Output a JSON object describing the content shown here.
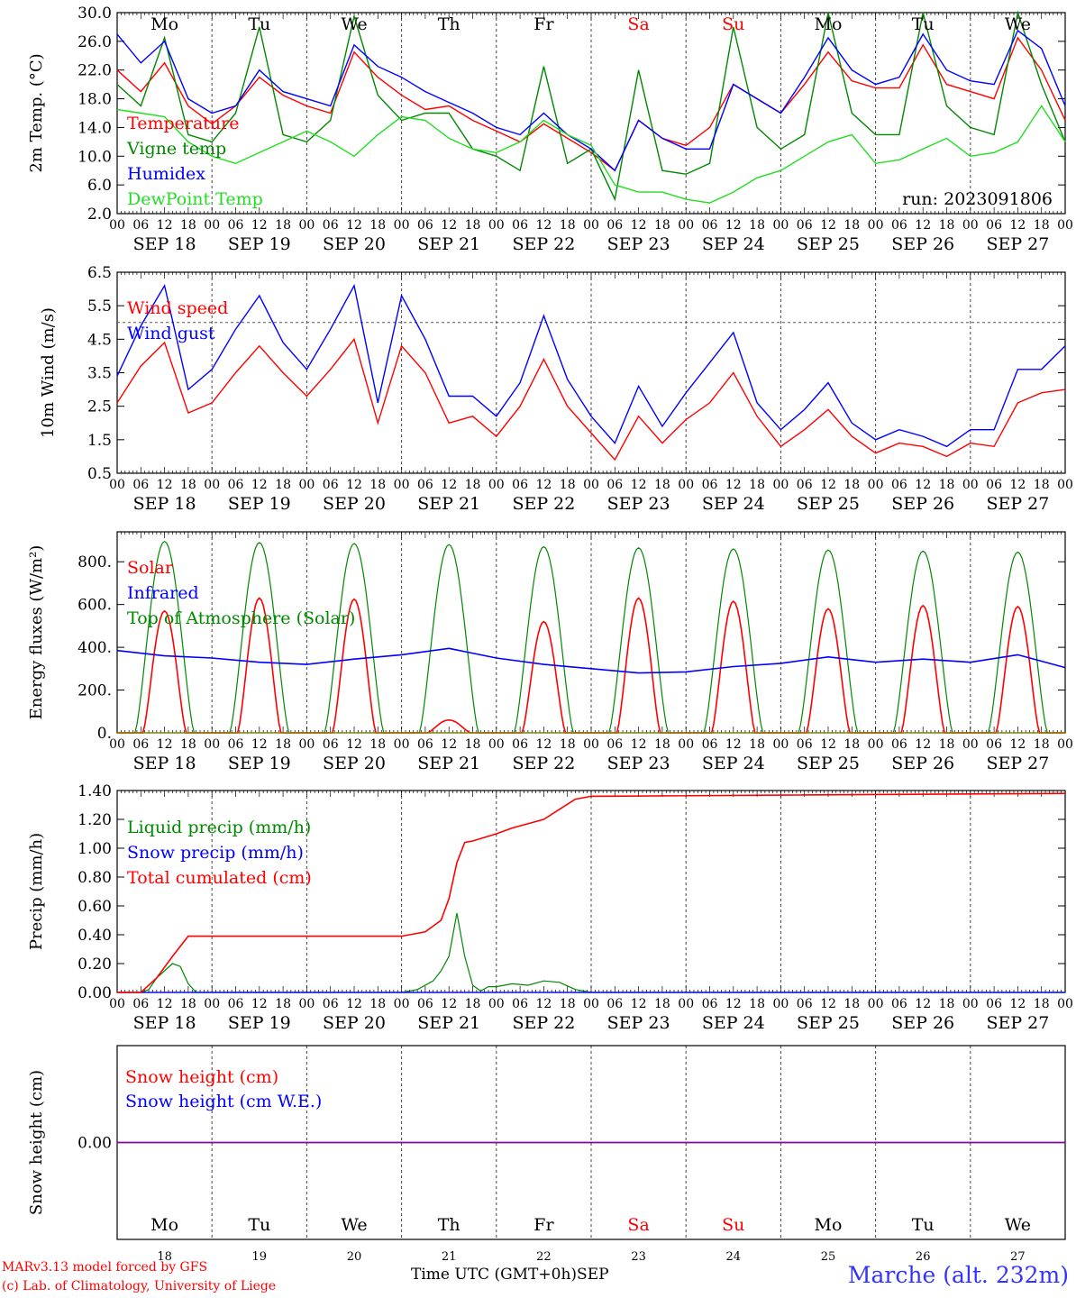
{
  "footer": {
    "model": "MARv3.13 model forced by GFS",
    "credit": "(c) Lab. of Climatology, University of Liege",
    "time_label": "Time UTC (GMT+0h)",
    "month": "SEP",
    "station": "Marche (alt. 232m)"
  },
  "days": {
    "weekdays": [
      "Mo",
      "Tu",
      "We",
      "Th",
      "Fr",
      "Sa",
      "Su",
      "Mo",
      "Tu",
      "We"
    ],
    "dates": [
      "SEP 18",
      "SEP 19",
      "SEP 20",
      "SEP 21",
      "SEP 22",
      "SEP 23",
      "SEP 24",
      "SEP 25",
      "SEP 26",
      "SEP 27"
    ],
    "day_numbers": [
      "18",
      "19",
      "20",
      "21",
      "22",
      "23",
      "24",
      "25",
      "26",
      "27"
    ],
    "hours": [
      "00",
      "06",
      "12",
      "18"
    ],
    "weekend_indices": [
      5,
      6
    ]
  },
  "colors": {
    "red": "#ff0000",
    "green": "#008800",
    "blue": "#0000ff",
    "lightgreen": "#22dd22",
    "purple": "#8800aa"
  },
  "chart_data": [
    {
      "type": "line",
      "ylabel": "2m Temp. (°C)",
      "ylim": [
        2,
        30
      ],
      "yticks": [
        "2.0",
        "6.0",
        "10.0",
        "14.0",
        "18.0",
        "22.0",
        "26.0",
        "30.0"
      ],
      "annotation": "run: 2023091806",
      "series": [
        {
          "name": "Temperature",
          "color": "#ff0000",
          "x": [
            0,
            6,
            12,
            18,
            24,
            30,
            36,
            42,
            48,
            54,
            60,
            66,
            72,
            78,
            84,
            90,
            96,
            102,
            108,
            114,
            120,
            126,
            132,
            138,
            144,
            150,
            156,
            162,
            168,
            174,
            180,
            186,
            192,
            198,
            204,
            210,
            216,
            222,
            228,
            234,
            240
          ],
          "y": [
            22,
            19,
            23,
            17,
            14.5,
            17,
            21,
            18.5,
            17,
            16,
            24.5,
            21,
            18.5,
            16.5,
            17,
            15,
            13.5,
            12,
            14.5,
            12.5,
            10.5,
            8,
            15,
            12.5,
            11.5,
            14,
            20,
            18,
            16,
            20,
            24.5,
            20.5,
            19.5,
            19.5,
            25.5,
            20,
            19,
            18,
            26.5,
            22,
            15
          ]
        },
        {
          "name": "Vigne temp",
          "color": "#008800",
          "x": [
            0,
            6,
            12,
            18,
            24,
            30,
            36,
            42,
            48,
            54,
            60,
            66,
            72,
            78,
            84,
            90,
            96,
            102,
            108,
            114,
            120,
            126,
            132,
            138,
            144,
            150,
            156,
            162,
            168,
            174,
            180,
            186,
            192,
            198,
            204,
            210,
            216,
            222,
            228,
            234,
            240
          ],
          "y": [
            20,
            17,
            26.5,
            13,
            12,
            16,
            28,
            13,
            12,
            15,
            29.5,
            18.5,
            15,
            16,
            16,
            11,
            10,
            8,
            22.5,
            9,
            11,
            4,
            22,
            8,
            7.5,
            9,
            28,
            14,
            11,
            13,
            30,
            16,
            13,
            13,
            30,
            17,
            14,
            13,
            30,
            20,
            12
          ]
        },
        {
          "name": "Humidex",
          "color": "#0000ff",
          "x": [
            0,
            6,
            12,
            18,
            24,
            30,
            36,
            42,
            48,
            54,
            60,
            66,
            72,
            78,
            84,
            90,
            96,
            102,
            108,
            114,
            120,
            126,
            132,
            138,
            144,
            150,
            156,
            162,
            168,
            174,
            180,
            186,
            192,
            198,
            204,
            210,
            216,
            222,
            228,
            234,
            240
          ],
          "y": [
            27,
            23,
            26,
            18,
            16,
            17,
            22,
            19,
            18,
            17,
            25.5,
            22.5,
            21,
            19,
            17.5,
            16,
            14,
            13,
            16,
            13,
            11,
            8,
            15,
            12.5,
            11,
            11,
            20,
            18,
            16,
            21,
            26.5,
            22,
            20,
            21,
            27,
            22,
            20.5,
            20,
            27.5,
            25,
            17
          ]
        },
        {
          "name": "DewPoint Temp",
          "color": "#22dd22",
          "x": [
            0,
            6,
            12,
            18,
            24,
            30,
            36,
            42,
            48,
            54,
            60,
            66,
            72,
            78,
            84,
            90,
            96,
            102,
            108,
            114,
            120,
            126,
            132,
            138,
            144,
            150,
            156,
            162,
            168,
            174,
            180,
            186,
            192,
            198,
            204,
            210,
            216,
            222,
            228,
            234,
            240
          ],
          "y": [
            16.5,
            16,
            15.5,
            12,
            10,
            9,
            10.5,
            12,
            13.5,
            12,
            10,
            13,
            15.5,
            15,
            12.5,
            11,
            10.5,
            12,
            15,
            13,
            11.5,
            6,
            5,
            5,
            4,
            3.5,
            5,
            7,
            8,
            10,
            12,
            13,
            9,
            9.5,
            11,
            12.5,
            10,
            10.5,
            12,
            17,
            12
          ]
        }
      ]
    },
    {
      "type": "line",
      "ylabel": "10m Wind (m/s)",
      "ylim": [
        0.5,
        6.5
      ],
      "yticks": [
        "0.5",
        "1.5",
        "2.5",
        "3.5",
        "4.5",
        "5.5",
        "6.5"
      ],
      "reference_line": 5,
      "series": [
        {
          "name": "Wind speed",
          "color": "#ff0000",
          "x": [
            0,
            6,
            12,
            18,
            24,
            30,
            36,
            42,
            48,
            54,
            60,
            66,
            72,
            78,
            84,
            90,
            96,
            102,
            108,
            114,
            120,
            126,
            132,
            138,
            144,
            150,
            156,
            162,
            168,
            174,
            180,
            186,
            192,
            198,
            204,
            210,
            216,
            222,
            228,
            234,
            240
          ],
          "y": [
            2.6,
            3.7,
            4.4,
            2.3,
            2.6,
            3.5,
            4.3,
            3.5,
            2.8,
            3.6,
            4.5,
            2,
            4.3,
            3.5,
            2,
            2.2,
            1.6,
            2.5,
            3.9,
            2.5,
            1.7,
            0.9,
            2.2,
            1.4,
            2.1,
            2.6,
            3.5,
            2.2,
            1.3,
            1.8,
            2.4,
            1.6,
            1.1,
            1.4,
            1.3,
            1,
            1.4,
            1.3,
            2.6,
            2.9,
            3
          ]
        },
        {
          "name": "Wind gust",
          "color": "#0000ff",
          "x": [
            0,
            6,
            12,
            18,
            24,
            30,
            36,
            42,
            48,
            54,
            60,
            66,
            72,
            78,
            84,
            90,
            96,
            102,
            108,
            114,
            120,
            126,
            132,
            138,
            144,
            150,
            156,
            162,
            168,
            174,
            180,
            186,
            192,
            198,
            204,
            210,
            216,
            222,
            228,
            234,
            240
          ],
          "y": [
            3.4,
            4.9,
            6.1,
            3,
            3.6,
            4.8,
            5.8,
            4.4,
            3.6,
            4.8,
            6.1,
            2.6,
            5.8,
            4.5,
            2.8,
            2.8,
            2.2,
            3.2,
            5.2,
            3.3,
            2.2,
            1.4,
            3.1,
            1.9,
            2.9,
            3.8,
            4.7,
            2.6,
            1.8,
            2.4,
            3.2,
            2,
            1.5,
            1.8,
            1.6,
            1.3,
            1.8,
            1.8,
            3.6,
            3.6,
            4.3
          ]
        }
      ]
    },
    {
      "type": "line",
      "ylabel": "Energy fluxes (W/m²)",
      "ylim": [
        0,
        940
      ],
      "yticks": [
        "0.",
        "200.",
        "400.",
        "600.",
        "800."
      ],
      "series": [
        {
          "name": "Solar",
          "color": "#ff0000",
          "peaks": [
            570,
            630,
            625,
            60,
            520,
            630,
            615,
            580,
            595,
            590
          ]
        },
        {
          "name": "Infrared",
          "color": "#0000ff",
          "x": [
            0,
            12,
            24,
            36,
            48,
            60,
            72,
            84,
            96,
            108,
            120,
            132,
            144,
            156,
            168,
            180,
            192,
            204,
            216,
            228,
            240
          ],
          "y": [
            385,
            360,
            350,
            330,
            320,
            345,
            365,
            395,
            350,
            320,
            300,
            280,
            285,
            310,
            325,
            355,
            330,
            345,
            330,
            365,
            305
          ]
        },
        {
          "name": "Top of Atmosphere (Solar)",
          "color": "#008800",
          "peaks": [
            895,
            890,
            885,
            880,
            870,
            865,
            860,
            855,
            850,
            845
          ]
        }
      ]
    },
    {
      "type": "line",
      "ylabel": "Precip (mm/h)",
      "ylim": [
        0,
        1.4
      ],
      "yticks": [
        "0.00",
        "0.20",
        "0.40",
        "0.60",
        "0.80",
        "1.00",
        "1.20",
        "1.40"
      ],
      "series": [
        {
          "name": "Liquid precip (mm/h)",
          "color": "#008800",
          "x": [
            0,
            6,
            8,
            10,
            12,
            14,
            16,
            18,
            20,
            22,
            72,
            76,
            80,
            82,
            84,
            86,
            88,
            90,
            92,
            94,
            96,
            100,
            104,
            108,
            112,
            116,
            120,
            240
          ],
          "y": [
            0,
            0,
            0.02,
            0.1,
            0.15,
            0.2,
            0.18,
            0.06,
            0,
            0,
            0,
            0.02,
            0.08,
            0.15,
            0.25,
            0.55,
            0.25,
            0.05,
            0.01,
            0.04,
            0.04,
            0.06,
            0.05,
            0.08,
            0.07,
            0.02,
            0,
            0
          ]
        },
        {
          "name": "Snow precip (mm/h)",
          "color": "#0000ff",
          "x": [
            0,
            240
          ],
          "y": [
            0,
            0
          ]
        },
        {
          "name": "Total cumulated (cm)",
          "color": "#ff0000",
          "x": [
            0,
            6,
            10,
            14,
            18,
            24,
            48,
            72,
            78,
            82,
            84,
            86,
            88,
            90,
            96,
            100,
            108,
            112,
            116,
            120,
            240
          ],
          "y": [
            0,
            0,
            0.1,
            0.25,
            0.39,
            0.39,
            0.39,
            0.39,
            0.42,
            0.5,
            0.65,
            0.9,
            1.04,
            1.05,
            1.1,
            1.14,
            1.2,
            1.27,
            1.34,
            1.36,
            1.38
          ]
        }
      ]
    },
    {
      "type": "line",
      "ylabel": "Snow height (cm)",
      "ylim": [
        -1,
        1
      ],
      "yticks": [
        "0.00"
      ],
      "series": [
        {
          "name": "Snow height (cm)",
          "color": "#ff0000",
          "x": [
            0,
            240
          ],
          "y": [
            0,
            0
          ]
        },
        {
          "name": "Snow height (cm W.E.)",
          "color": "#0000ff",
          "x": [
            0,
            240
          ],
          "y": [
            0,
            0
          ]
        }
      ]
    }
  ]
}
